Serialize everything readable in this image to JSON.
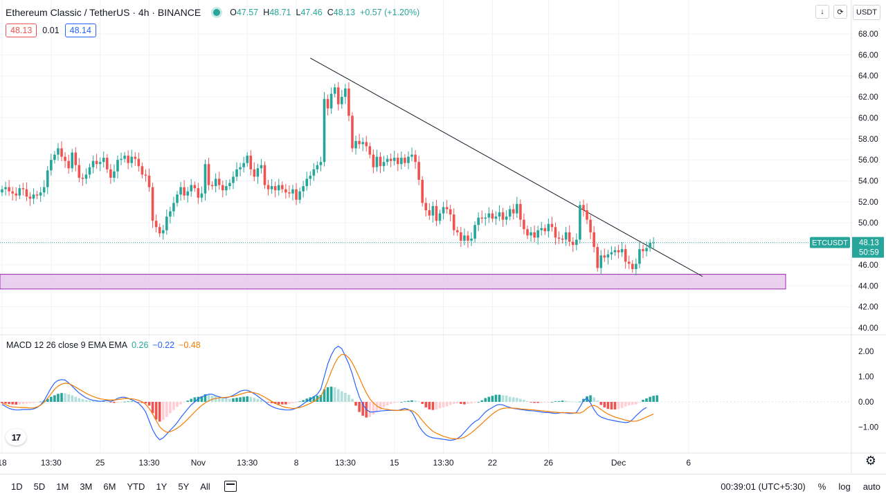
{
  "header": {
    "title": "Ethereum Classic / TetherUS · 4h · BINANCE",
    "ohlc": [
      {
        "label": "O",
        "value": "47.57"
      },
      {
        "label": "H",
        "value": "48.71"
      },
      {
        "label": "L",
        "value": "47.46"
      },
      {
        "label": "C",
        "value": "48.13"
      }
    ],
    "change": "+0.57 (+1.20%)"
  },
  "quote": {
    "sell": "48.13",
    "spread": "0.01",
    "buy": "48.14"
  },
  "currency": "USDT",
  "symbol_tag": "ETCUSDT",
  "last_price": "48.13",
  "countdown": "50:59",
  "macd": {
    "label": "MACD 12 26 close 9 EMA EMA",
    "histogram_value": "0.26",
    "macd_value": "−0.22",
    "signal_value": "−0.48"
  },
  "colors": {
    "up": "#26a69a",
    "down": "#ef5350",
    "macd": "#2962ff",
    "signal": "#f57c00",
    "zone": "#e1bee7"
  },
  "bottom": {
    "ranges": [
      "1D",
      "5D",
      "1M",
      "3M",
      "6M",
      "YTD",
      "1Y",
      "5Y",
      "All"
    ],
    "time": "00:39:01 (UTC+5:30)",
    "percent": "%",
    "log": "log",
    "auto": "auto"
  },
  "chart_data": {
    "type": "candlestick",
    "price_axis": {
      "min": 40,
      "max": 68,
      "ticks": [
        "68.00",
        "66.00",
        "64.00",
        "62.00",
        "60.00",
        "58.00",
        "56.00",
        "54.00",
        "52.00",
        "50.00",
        "48.00",
        "46.00",
        "44.00",
        "42.00",
        "40.00"
      ]
    },
    "macd_axis": {
      "min": -1.5,
      "max": 2.2,
      "ticks": [
        "2.00",
        "1.00",
        "0.00",
        "−1.00"
      ]
    },
    "x_labels": [
      {
        "label": "18",
        "index": 0
      },
      {
        "label": "13:30",
        "index": 14
      },
      {
        "label": "25",
        "index": 28
      },
      {
        "label": "13:30",
        "index": 42
      },
      {
        "label": "Nov",
        "index": 56
      },
      {
        "label": "13:30",
        "index": 70
      },
      {
        "label": "8",
        "index": 84
      },
      {
        "label": "13:30",
        "index": 98
      },
      {
        "label": "15",
        "index": 112
      },
      {
        "label": "13:30",
        "index": 126
      },
      {
        "label": "22",
        "index": 140
      },
      {
        "label": "26",
        "index": 156
      },
      {
        "label": "Dec",
        "index": 176
      },
      {
        "label": "6",
        "index": 196
      }
    ],
    "support_zone": {
      "from": 43.7,
      "to": 45.1
    },
    "trendline": {
      "from": {
        "index": 88,
        "price": 65.7
      },
      "to": {
        "index": 200,
        "price": 44.9
      }
    },
    "candles_close": [
      53.2,
      53.4,
      53,
      52.8,
      52.6,
      53.3,
      53.2,
      52.5,
      52.3,
      52.7,
      52.6,
      52.9,
      53.4,
      55,
      56,
      56.5,
      57.1,
      56.3,
      55.9,
      55.2,
      56.7,
      55.5,
      54.3,
      54.2,
      54.6,
      55.3,
      55.9,
      55.6,
      55.8,
      56.2,
      55.1,
      54.3,
      54.9,
      56,
      56.1,
      56.4,
      55.7,
      56.3,
      56.1,
      55.4,
      54.6,
      54.5,
      53.4,
      50.2,
      49.6,
      49,
      49.3,
      50.6,
      51.1,
      51.9,
      52.7,
      53.4,
      52.6,
      53,
      53.6,
      53.3,
      52.4,
      52.8,
      55.6,
      53.6,
      53.5,
      54.2,
      53.6,
      53.1,
      53.5,
      53.8,
      54.4,
      55.1,
      55.3,
      55.7,
      56.4,
      55.1,
      54.4,
      55.2,
      55.5,
      53.6,
      53.2,
      53.5,
      53.1,
      53.6,
      53.2,
      52.9,
      52.8,
      53.2,
      52.2,
      53,
      53.5,
      54.2,
      54.5,
      55.1,
      55.5,
      55.8,
      61.8,
      60.9,
      62.3,
      62.9,
      61.3,
      62,
      62.8,
      60.2,
      57.1,
      57.8,
      57.5,
      57.7,
      57.3,
      56.5,
      55.3,
      56.3,
      55.4,
      55.8,
      56.1,
      55.9,
      56.2,
      55.6,
      56.2,
      55.7,
      56.3,
      56.5,
      55.8,
      54.1,
      51.9,
      51.2,
      50.7,
      51.6,
      50.2,
      50.9,
      51.5,
      51.3,
      50.8,
      49.3,
      49.1,
      48.3,
      48.8,
      48.3,
      48.5,
      49.8,
      50.5,
      50.4,
      50.5,
      50.9,
      50.4,
      50.6,
      51,
      50.3,
      50.6,
      51.3,
      50.9,
      51.8,
      50.3,
      49.4,
      48.8,
      49.1,
      48.6,
      49.3,
      49.5,
      49.2,
      49.9,
      49.6,
      48.6,
      48.5,
      48.4,
      49.1,
      48.2,
      47.9,
      48.4,
      51.7,
      51.2,
      50.3,
      49.1,
      47.7,
      45.7,
      46.9,
      46.7,
      47,
      47.2,
      47.4,
      47.2,
      47.5,
      46.3,
      46.1,
      45.6,
      46.1,
      47.5,
      47.3,
      47.6,
      48.1,
      48.13
    ],
    "histogram": [
      -0.05,
      -0.07,
      -0.09,
      -0.1,
      -0.11,
      -0.1,
      -0.08,
      -0.07,
      -0.06,
      -0.04,
      -0.02,
      0.01,
      0.05,
      0.12,
      0.2,
      0.26,
      0.32,
      0.35,
      0.34,
      0.3,
      0.26,
      0.2,
      0.15,
      0.11,
      0.07,
      0.05,
      0.04,
      0.03,
      0.02,
      0.02,
      0,
      -0.02,
      -0.04,
      -0.03,
      -0.01,
      0.01,
      0.02,
      0.02,
      0.01,
      -0.01,
      -0.04,
      -0.06,
      -0.15,
      -0.45,
      -0.7,
      -0.78,
      -0.72,
      -0.6,
      -0.45,
      -0.32,
      -0.2,
      -0.1,
      -0.02,
      0.05,
      0.12,
      0.18,
      0.2,
      0.22,
      0.3,
      0.28,
      0.24,
      0.22,
      0.18,
      0.14,
      0.13,
      0.12,
      0.14,
      0.16,
      0.18,
      0.2,
      0.22,
      0.2,
      0.16,
      0.12,
      0.08,
      0.03,
      -0.02,
      -0.05,
      -0.08,
      -0.1,
      -0.1,
      -0.1,
      -0.08,
      -0.05,
      -0.03,
      0.02,
      0.07,
      0.13,
      0.18,
      0.22,
      0.25,
      0.27,
      0.5,
      0.58,
      0.6,
      0.58,
      0.5,
      0.42,
      0.36,
      0.28,
      0.12,
      -0.15,
      -0.4,
      -0.55,
      -0.62,
      -0.6,
      -0.5,
      -0.4,
      -0.32,
      -0.22,
      -0.14,
      -0.08,
      -0.04,
      -0.02,
      0,
      0.02,
      0.04,
      0.06,
      0.05,
      0.02,
      -0.08,
      -0.22,
      -0.3,
      -0.32,
      -0.3,
      -0.26,
      -0.22,
      -0.18,
      -0.12,
      -0.08,
      -0.06,
      -0.08,
      -0.1,
      -0.08,
      -0.06,
      -0.03,
      0,
      0.06,
      0.15,
      0.2,
      0.24,
      0.28,
      0.28,
      0.26,
      0.25,
      0.2,
      0.18,
      0.16,
      0.12,
      0.08,
      0.03,
      -0.02,
      -0.04,
      -0.04,
      -0.03,
      -0.02,
      -0.01,
      0,
      0.02,
      0.03,
      0.05,
      0.04,
      0.02,
      0.01,
      0,
      0.01,
      0.12,
      0.22,
      0.26,
      0.18,
      0.05,
      -0.12,
      -0.22,
      -0.28,
      -0.3,
      -0.3,
      -0.28,
      -0.24,
      -0.18,
      -0.14,
      -0.12,
      -0.1,
      -0.02,
      0.08,
      0.14,
      0.2,
      0.24,
      0.26
    ],
    "macd_line": [
      -0.1,
      -0.18,
      -0.26,
      -0.3,
      -0.32,
      -0.32,
      -0.3,
      -0.3,
      -0.3,
      -0.28,
      -0.22,
      -0.12,
      0.05,
      0.3,
      0.55,
      0.75,
      0.85,
      0.88,
      0.86,
      0.75,
      0.62,
      0.48,
      0.35,
      0.25,
      0.16,
      0.1,
      0.06,
      0.04,
      0.02,
      0.04,
      0.05,
      0.02,
      0.06,
      0.14,
      0.18,
      0.18,
      0.14,
      0.08,
      0.02,
      -0.06,
      -0.2,
      -0.4,
      -0.75,
      -1.1,
      -1.35,
      -1.5,
      -1.42,
      -1.28,
      -1.12,
      -0.98,
      -0.82,
      -0.62,
      -0.45,
      -0.28,
      -0.12,
      0,
      0.12,
      0.2,
      0.25,
      0.3,
      0.3,
      0.24,
      0.2,
      0.16,
      0.16,
      0.2,
      0.26,
      0.34,
      0.42,
      0.46,
      0.46,
      0.4,
      0.32,
      0.22,
      0.12,
      0.02,
      -0.1,
      -0.18,
      -0.24,
      -0.28,
      -0.3,
      -0.32,
      -0.32,
      -0.3,
      -0.25,
      -0.18,
      -0.08,
      0.02,
      0.1,
      0.2,
      0.3,
      0.5,
      1,
      1.5,
      1.85,
      2.1,
      2.2,
      2.1,
      1.8,
      1.5,
      1.1,
      0.6,
      0.2,
      -0.1,
      -0.3,
      -0.4,
      -0.4,
      -0.38,
      -0.36,
      -0.35,
      -0.34,
      -0.33,
      -0.34,
      -0.34,
      -0.3,
      -0.26,
      -0.3,
      -0.4,
      -0.65,
      -0.95,
      -1.15,
      -1.3,
      -1.38,
      -1.42,
      -1.44,
      -1.46,
      -1.48,
      -1.5,
      -1.52,
      -1.5,
      -1.45,
      -1.35,
      -1.2,
      -1.05,
      -0.9,
      -0.78,
      -0.7,
      -0.55,
      -0.4,
      -0.3,
      -0.22,
      -0.14,
      -0.1,
      -0.12,
      -0.18,
      -0.22,
      -0.26,
      -0.28,
      -0.3,
      -0.32,
      -0.34,
      -0.35,
      -0.36,
      -0.38,
      -0.4,
      -0.42,
      -0.42,
      -0.44,
      -0.46,
      -0.44,
      -0.42,
      -0.44,
      -0.46,
      -0.45,
      -0.42,
      -0.2,
      0.05,
      0.15,
      -0.05,
      -0.3,
      -0.5,
      -0.6,
      -0.65,
      -0.7,
      -0.72,
      -0.75,
      -0.78,
      -0.8,
      -0.82,
      -0.8,
      -0.7,
      -0.55,
      -0.42,
      -0.3,
      -0.22
    ],
    "signal_line": [
      -0.05,
      -0.11,
      -0.17,
      -0.2,
      -0.21,
      -0.22,
      -0.22,
      -0.23,
      -0.24,
      -0.24,
      -0.2,
      -0.13,
      -0.02,
      0.14,
      0.32,
      0.5,
      0.62,
      0.7,
      0.74,
      0.72,
      0.66,
      0.58,
      0.5,
      0.42,
      0.34,
      0.27,
      0.21,
      0.16,
      0.12,
      0.1,
      0.08,
      0.07,
      0.07,
      0.09,
      0.11,
      0.13,
      0.13,
      0.12,
      0.1,
      0.06,
      0,
      -0.1,
      -0.26,
      -0.48,
      -0.74,
      -0.98,
      -1.12,
      -1.2,
      -1.18,
      -1.12,
      -1.04,
      -0.94,
      -0.82,
      -0.68,
      -0.54,
      -0.4,
      -0.26,
      -0.14,
      -0.04,
      0.04,
      0.1,
      0.14,
      0.16,
      0.17,
      0.18,
      0.2,
      0.22,
      0.26,
      0.3,
      0.34,
      0.38,
      0.38,
      0.36,
      0.32,
      0.26,
      0.18,
      0.1,
      0.02,
      -0.06,
      -0.12,
      -0.18,
      -0.22,
      -0.24,
      -0.26,
      -0.25,
      -0.22,
      -0.18,
      -0.12,
      -0.06,
      0.02,
      0.1,
      0.22,
      0.48,
      0.84,
      1.2,
      1.52,
      1.76,
      1.88,
      1.86,
      1.74,
      1.54,
      1.26,
      0.96,
      0.64,
      0.36,
      0.12,
      -0.04,
      -0.16,
      -0.24,
      -0.28,
      -0.3,
      -0.32,
      -0.33,
      -0.34,
      -0.33,
      -0.32,
      -0.32,
      -0.34,
      -0.42,
      -0.56,
      -0.74,
      -0.9,
      -1.04,
      -1.16,
      -1.24,
      -1.3,
      -1.36,
      -1.4,
      -1.44,
      -1.46,
      -1.46,
      -1.44,
      -1.4,
      -1.32,
      -1.22,
      -1.1,
      -0.98,
      -0.86,
      -0.72,
      -0.6,
      -0.48,
      -0.38,
      -0.3,
      -0.26,
      -0.24,
      -0.24,
      -0.25,
      -0.26,
      -0.28,
      -0.29,
      -0.3,
      -0.31,
      -0.32,
      -0.34,
      -0.35,
      -0.37,
      -0.38,
      -0.4,
      -0.41,
      -0.42,
      -0.43,
      -0.43,
      -0.43,
      -0.44,
      -0.44,
      -0.44,
      -0.38,
      -0.26,
      -0.16,
      -0.14,
      -0.2,
      -0.3,
      -0.4,
      -0.48,
      -0.54,
      -0.6,
      -0.64,
      -0.68,
      -0.72,
      -0.75,
      -0.77,
      -0.76,
      -0.72,
      -0.66,
      -0.6,
      -0.54,
      -0.48
    ]
  }
}
